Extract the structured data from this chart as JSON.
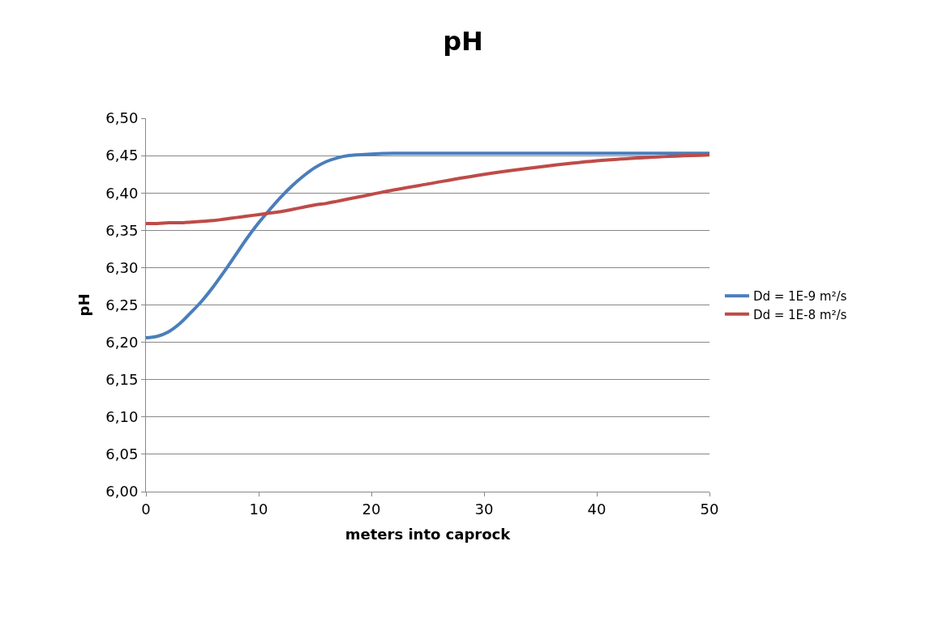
{
  "chart_data": {
    "type": "line",
    "title": "pH",
    "xlabel": "meters into caprock",
    "ylabel": "pH",
    "xlim": [
      0,
      50
    ],
    "xticks": [
      0,
      10,
      20,
      30,
      40,
      50
    ],
    "ylim": [
      6.0,
      6.5
    ],
    "yticks": [
      {
        "value": 6.0,
        "label": "6,00"
      },
      {
        "value": 6.05,
        "label": "6,05"
      },
      {
        "value": 6.1,
        "label": "6,10"
      },
      {
        "value": 6.15,
        "label": "6,15"
      },
      {
        "value": 6.2,
        "label": "6,20"
      },
      {
        "value": 6.25,
        "label": "6,25"
      },
      {
        "value": 6.3,
        "label": "6,30"
      },
      {
        "value": 6.35,
        "label": "6,35"
      },
      {
        "value": 6.4,
        "label": "6,40"
      },
      {
        "value": 6.45,
        "label": "6,45"
      },
      {
        "value": 6.5,
        "label": "6,50"
      }
    ],
    "grid": "y",
    "legend": "right",
    "marker": "none",
    "line_style": "solid",
    "x": [
      0,
      1,
      2,
      3,
      4,
      5,
      6,
      7,
      8,
      9,
      10,
      11,
      12,
      13,
      14,
      15,
      16,
      17,
      18,
      20,
      22,
      25,
      30,
      35,
      40,
      45,
      50
    ],
    "series": [
      {
        "name": "Dd = 1E-9 m²/s",
        "color": "#4a7ebb",
        "values": [
          6.206,
          6.208,
          6.214,
          6.225,
          6.24,
          6.256,
          6.275,
          6.296,
          6.318,
          6.34,
          6.36,
          6.378,
          6.395,
          6.41,
          6.423,
          6.434,
          6.442,
          6.447,
          6.45,
          6.452,
          6.453,
          6.453,
          6.453,
          6.453,
          6.453,
          6.453,
          6.453
        ]
      },
      {
        "name": "Dd = 1E-8 m²/s",
        "color": "#be4b48",
        "values": [
          6.359,
          6.359,
          6.36,
          6.36,
          6.361,
          6.362,
          6.363,
          6.365,
          6.367,
          6.369,
          6.371,
          6.373,
          6.375,
          6.378,
          6.381,
          6.384,
          6.386,
          6.389,
          6.392,
          6.398,
          6.404,
          6.412,
          6.425,
          6.435,
          6.443,
          6.448,
          6.451
        ]
      }
    ]
  }
}
